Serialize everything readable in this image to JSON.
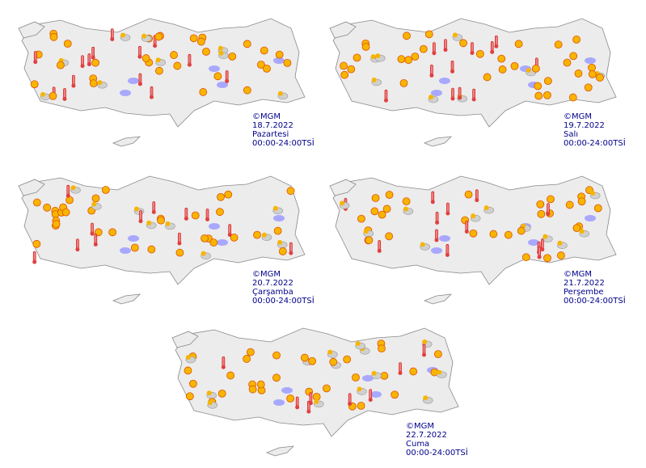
{
  "maps": [
    {
      "credit": "©MGM",
      "date": "18.7.2022",
      "day": "Pazartesi",
      "period": "00:00-24:00TSİ"
    },
    {
      "credit": "©MGM",
      "date": "19.7.2022",
      "day": "Salı",
      "period": "00:00-24:00TSİ"
    },
    {
      "credit": "©MGM",
      "date": "20.7.2022",
      "day": "Çarşamba",
      "period": "00:00-24:00TSİ"
    },
    {
      "credit": "©MGM",
      "date": "21.7.2022",
      "day": "Perşembe",
      "period": "00:00-24:00TSİ"
    },
    {
      "credit": "©MGM",
      "date": "22.7.2022",
      "day": "Cuma",
      "period": "00:00-24:00TSİ"
    }
  ]
}
